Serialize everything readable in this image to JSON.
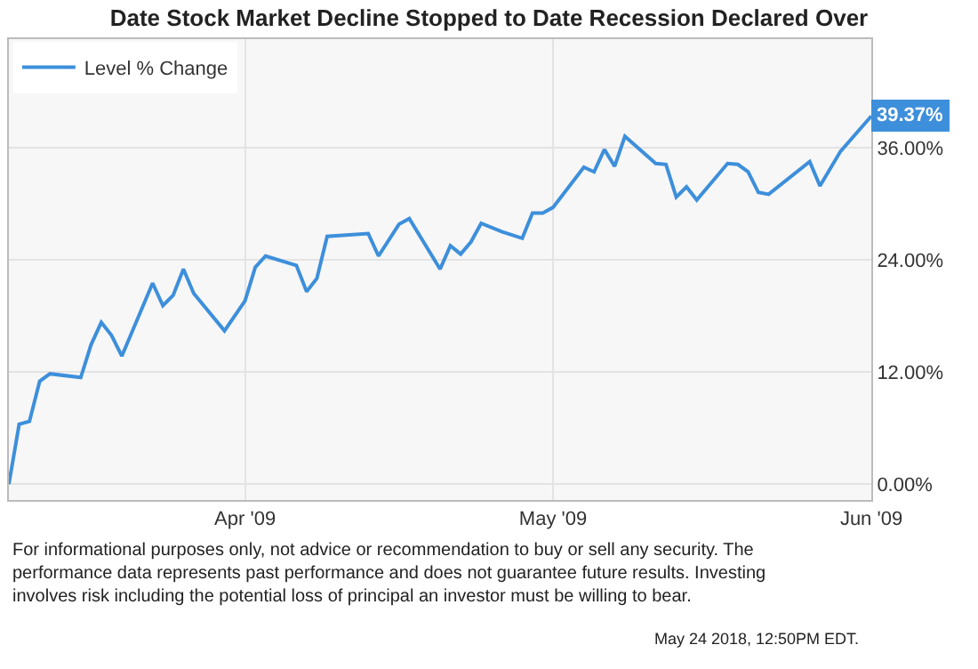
{
  "chart_data": {
    "type": "line",
    "title": "Date Stock Market Decline Stopped to Date Recession Declared Over",
    "series": [
      {
        "name": "Level % Change",
        "color": "#3d8fdb",
        "x": [
          "2009-03-09",
          "2009-03-10",
          "2009-03-11",
          "2009-03-12",
          "2009-03-13",
          "2009-03-16",
          "2009-03-17",
          "2009-03-18",
          "2009-03-19",
          "2009-03-20",
          "2009-03-23",
          "2009-03-24",
          "2009-03-25",
          "2009-03-26",
          "2009-03-27",
          "2009-03-30",
          "2009-04-01",
          "2009-04-02",
          "2009-04-03",
          "2009-04-06",
          "2009-04-07",
          "2009-04-08",
          "2009-04-09",
          "2009-04-13",
          "2009-04-14",
          "2009-04-16",
          "2009-04-17",
          "2009-04-20",
          "2009-04-21",
          "2009-04-22",
          "2009-04-23",
          "2009-04-24",
          "2009-04-26",
          "2009-04-28",
          "2009-04-29",
          "2009-04-30",
          "2009-05-01",
          "2009-05-04",
          "2009-05-05",
          "2009-05-06",
          "2009-05-07",
          "2009-05-08",
          "2009-05-11",
          "2009-05-12",
          "2009-05-13",
          "2009-05-14",
          "2009-05-15",
          "2009-05-18",
          "2009-05-19",
          "2009-05-20",
          "2009-05-21",
          "2009-05-22",
          "2009-05-26",
          "2009-05-27",
          "2009-05-29",
          "2009-06-01"
        ],
        "values": [
          0,
          6.4,
          6.7,
          11.0,
          11.8,
          11.4,
          14.9,
          17.3,
          15.9,
          13.7,
          21.5,
          19.1,
          20.2,
          23.0,
          20.4,
          16.4,
          19.6,
          23.2,
          24.4,
          23.4,
          20.6,
          22.0,
          26.5,
          26.8,
          24.4,
          27.8,
          28.4,
          23.0,
          25.5,
          24.6,
          25.9,
          27.9,
          27.0,
          26.3,
          29.0,
          29.0,
          29.6,
          33.9,
          33.4,
          35.8,
          34.0,
          37.2,
          34.3,
          34.2,
          30.7,
          31.8,
          30.4,
          34.3,
          34.2,
          33.4,
          31.2,
          31.0,
          34.5,
          31.9,
          35.6,
          39.37
        ]
      }
    ],
    "xlim": [
      "2009-03-09",
      "2009-06-01"
    ],
    "xticks": [
      {
        "value": "2009-04-01",
        "label": "Apr '09"
      },
      {
        "value": "2009-05-01",
        "label": "May '09"
      },
      {
        "value": "2009-06-01",
        "label": "Jun '09"
      }
    ],
    "ylim": [
      -1.7,
      47.6
    ],
    "yticks": [
      {
        "value": 0,
        "label": "0.00%"
      },
      {
        "value": 12,
        "label": "12.00%"
      },
      {
        "value": 24,
        "label": "24.00%"
      },
      {
        "value": 36,
        "label": "36.00%"
      }
    ],
    "grid": true,
    "legend": "top left",
    "marker": "none",
    "line_style": "solid",
    "annotations": [
      {
        "text": "39.37%",
        "x": "2009-06-01",
        "y": 39.37
      },
      "For informational purposes only, not advice or recommendation to buy or sell any security. The performance data represents past performance and does not guarantee future results. Investing involves risk including the potential loss of principal an investor must be willing to bear.",
      "May 24 2018, 12:50PM EDT."
    ]
  }
}
